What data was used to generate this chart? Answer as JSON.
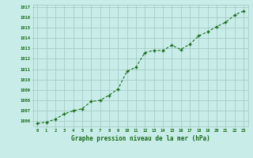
{
  "x": [
    0,
    1,
    2,
    3,
    4,
    5,
    6,
    7,
    8,
    9,
    10,
    11,
    12,
    13,
    14,
    15,
    16,
    17,
    18,
    19,
    20,
    21,
    22,
    23
  ],
  "y": [
    1005.8,
    1005.9,
    1006.2,
    1006.7,
    1007.0,
    1007.2,
    1007.9,
    1008.0,
    1008.5,
    1009.1,
    1010.8,
    1011.2,
    1012.6,
    1012.8,
    1012.8,
    1013.3,
    1012.9,
    1013.4,
    1014.2,
    1014.6,
    1015.1,
    1015.5,
    1016.2,
    1016.6
  ],
  "line_color": "#1a6b1a",
  "marker": "+",
  "bg_color": "#c8ece8",
  "grid_color": "#a0c8c4",
  "tick_label_color": "#1a6b1a",
  "xlabel": "Graphe pression niveau de la mer (hPa)",
  "xlabel_color": "#1a6b1a",
  "ylim": [
    1005.5,
    1017.2
  ],
  "yticks": [
    1006,
    1007,
    1008,
    1009,
    1010,
    1011,
    1012,
    1013,
    1014,
    1015,
    1016,
    1017
  ],
  "xticks": [
    0,
    1,
    2,
    3,
    4,
    5,
    6,
    7,
    8,
    9,
    10,
    11,
    12,
    13,
    14,
    15,
    16,
    17,
    18,
    19,
    20,
    21,
    22,
    23
  ],
  "xlim": [
    -0.5,
    23.5
  ]
}
